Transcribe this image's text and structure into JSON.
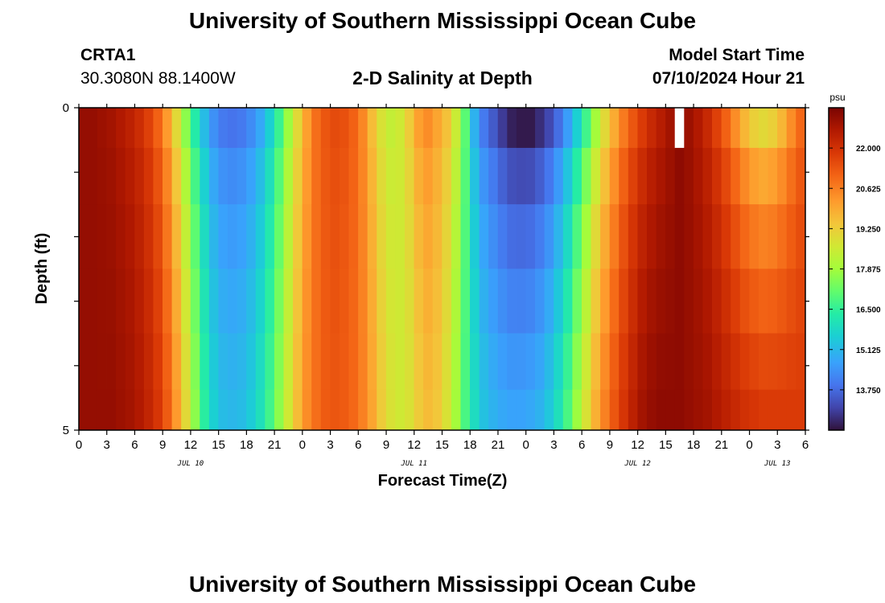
{
  "page": {
    "title_top": "University of Southern Mississippi Ocean Cube",
    "title_bottom": "University of Southern Mississippi Ocean Cube",
    "station_id": "CRTA1",
    "station_coords": "30.3080N  88.1400W",
    "plot_title": "2-D Salinity at Depth",
    "model_label": "Model Start Time",
    "model_time": "07/10/2024 Hour 21"
  },
  "chart_data": {
    "type": "heatmap",
    "title": "2-D Salinity at Depth",
    "xlabel": "Forecast Time(Z)",
    "ylabel": "Depth (ft)",
    "x_tick_labels": [
      "0",
      "3",
      "6",
      "9",
      "12",
      "15",
      "18",
      "21",
      "0",
      "3",
      "6",
      "9",
      "12",
      "15",
      "18",
      "21",
      "0",
      "3",
      "6",
      "9",
      "12",
      "15",
      "18",
      "21",
      "0",
      "3",
      "6"
    ],
    "x_hours_range": [
      0,
      78
    ],
    "date_labels": [
      {
        "label": "JUL 10",
        "hour": 12
      },
      {
        "label": "JUL 11",
        "hour": 36
      },
      {
        "label": "JUL 12",
        "hour": 60
      },
      {
        "label": "JUL 13",
        "hour": 75
      }
    ],
    "y_tick_labels": [
      "0",
      "5"
    ],
    "ylim": [
      0,
      5
    ],
    "depth_layers": [
      0.25,
      1.0,
      2.0,
      3.0,
      4.0,
      4.75
    ],
    "colorbar": {
      "unit": "psu",
      "min": 12.375,
      "max": 23.375,
      "tick_labels": [
        "22.000",
        "20.625",
        "19.250",
        "17.875",
        "16.500",
        "15.125",
        "13.750"
      ],
      "tick_values": [
        22.0,
        20.625,
        19.25,
        17.875,
        16.5,
        15.125,
        13.75
      ]
    },
    "surface_salinity_by_hour": [
      23.0,
      23.0,
      22.9,
      22.8,
      22.6,
      22.4,
      22.1,
      21.7,
      21.1,
      20.2,
      19.0,
      17.6,
      16.3,
      15.2,
      14.4,
      14.0,
      13.9,
      14.0,
      14.3,
      14.8,
      15.6,
      16.6,
      17.8,
      19.0,
      20.1,
      20.9,
      21.3,
      21.5,
      21.4,
      21.1,
      20.5,
      19.6,
      18.8,
      18.4,
      18.6,
      19.3,
      20.1,
      20.4,
      20.0,
      19.5,
      18.5,
      17.0,
      15.0,
      14.0,
      13.5,
      13.0,
      12.6,
      12.5,
      12.5,
      12.8,
      13.2,
      13.8,
      14.6,
      15.6,
      16.7,
      17.9,
      19.0,
      19.9,
      20.7,
      21.3,
      21.8,
      22.2,
      22.5,
      22.8,
      null,
      22.9,
      22.6,
      22.2,
      21.7,
      21.1,
      20.4,
      19.7,
      19.2,
      19.0,
      19.2,
      19.7,
      20.4,
      21.0,
      21.2
    ],
    "deep_salinity_by_hour": [
      23.0,
      23.0,
      23.0,
      23.0,
      22.9,
      22.8,
      22.6,
      22.3,
      21.9,
      21.2,
      20.2,
      19.0,
      17.6,
      16.4,
      15.6,
      15.2,
      15.1,
      15.2,
      15.5,
      16.0,
      16.7,
      17.6,
      18.6,
      19.6,
      20.4,
      20.9,
      21.2,
      21.3,
      21.2,
      21.0,
      20.6,
      20.0,
      19.3,
      18.8,
      18.6,
      18.8,
      19.3,
      19.6,
      19.4,
      18.8,
      17.9,
      16.8,
      15.9,
      15.3,
      15.0,
      14.8,
      14.7,
      14.7,
      14.8,
      15.0,
      15.4,
      16.0,
      16.8,
      17.8,
      18.8,
      19.8,
      20.6,
      21.3,
      21.9,
      22.4,
      22.8,
      23.0,
      23.1,
      23.1,
      23.1,
      23.0,
      22.9,
      22.8,
      22.6,
      22.4,
      22.2,
      22.0,
      21.9,
      21.8,
      21.8,
      21.8,
      21.8,
      21.8,
      21.8
    ]
  }
}
